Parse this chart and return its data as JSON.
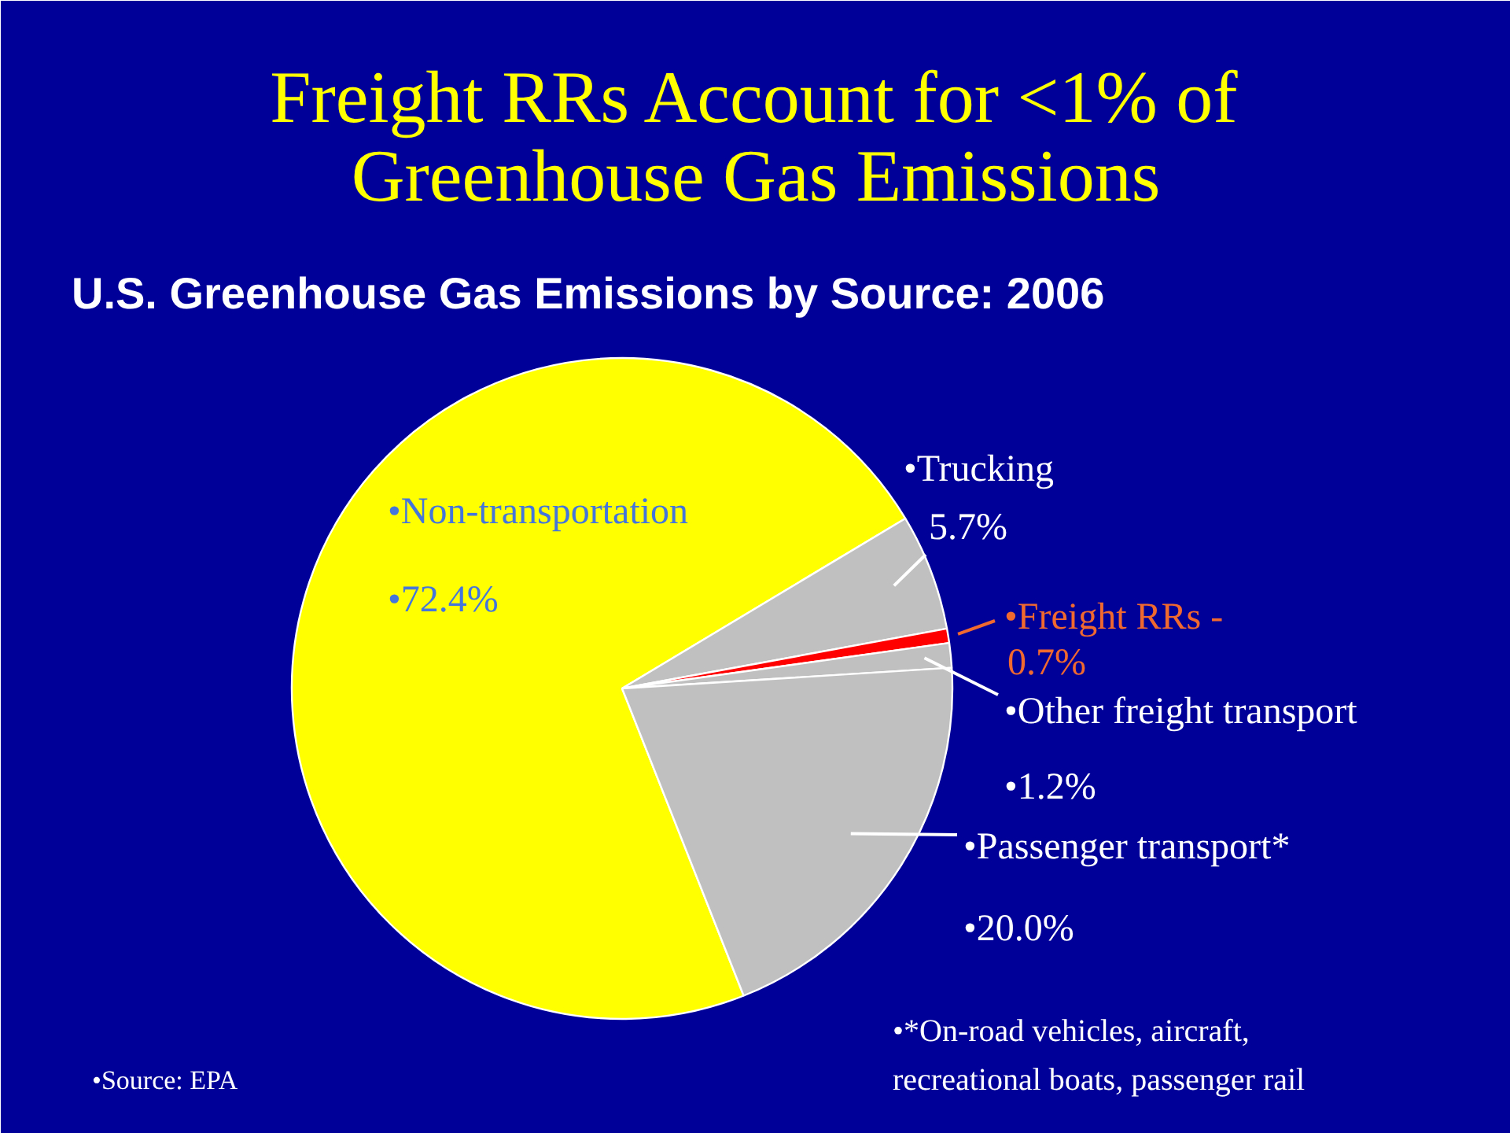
{
  "chart_data": {
    "type": "pie",
    "title": "Freight RRs Account for <1% of Greenhouse Gas Emissions",
    "subtitle": "U.S. Greenhouse Gas Emissions by Source: 2006",
    "categories": [
      "•Non-transportation",
      "•Trucking",
      "•Freight RRs -",
      "•Other freight transport",
      "•Passenger transport*"
    ],
    "values": [
      72.4,
      5.7,
      0.7,
      1.2,
      20.0
    ],
    "colors": [
      "#ffff00",
      "#c0c0c0",
      "#ff0000",
      "#c0c0c0",
      "#c0c0c0"
    ],
    "value_labels": [
      "•72.4%",
      "5.7%",
      "0.7%",
      "•1.2%",
      "•20.0%"
    ],
    "annotations": [
      "•Source: EPA",
      "•*On-road vehicles, aircraft, recreational boats, passenger rail"
    ]
  }
}
